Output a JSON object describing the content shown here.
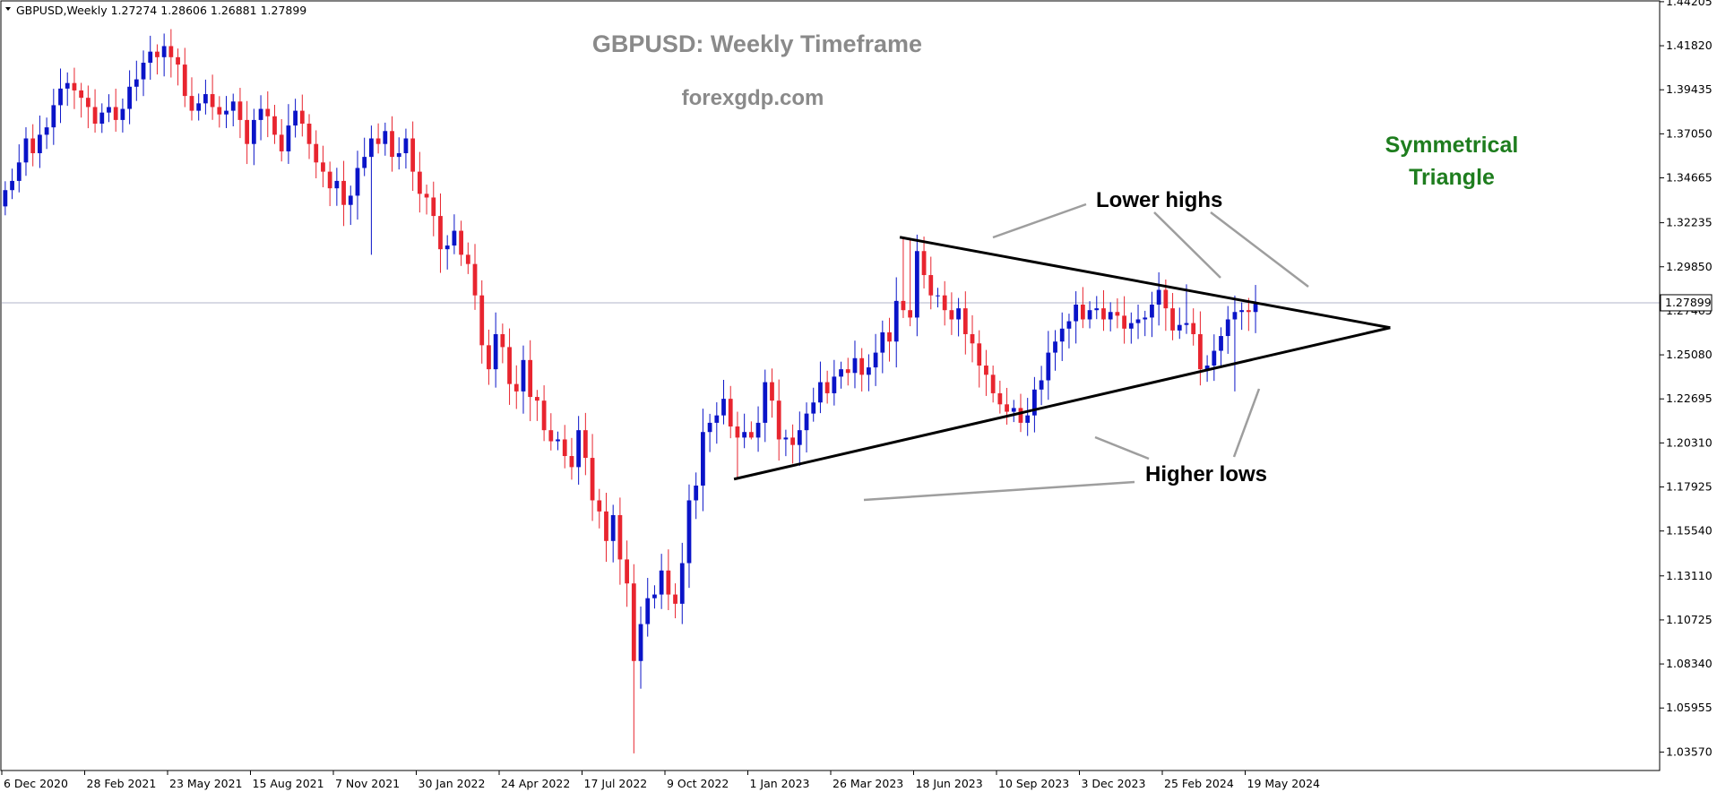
{
  "chart_data": {
    "type": "candlestick",
    "symbol_header": "GBPUSD,Weekly  1.27274 1.28606 1.26881 1.27899",
    "title": "GBPUSD: Weekly Timeframe",
    "subtitle": "forexgdp.com",
    "pattern_label": [
      "Symmetrical",
      "Triangle"
    ],
    "annotations": {
      "lower_highs": "Lower highs",
      "higher_lows": "Higher lows"
    },
    "current_price_label": "1.27899",
    "current_price": 1.27899,
    "ylim": [
      1.0257,
      1.442
    ],
    "x_range_weeks": [
      0,
      240
    ],
    "y_ticks": [
      "1.44205",
      "1.41820",
      "1.39435",
      "1.37050",
      "1.34665",
      "1.32235",
      "1.29850",
      "1.27465",
      "1.25080",
      "1.22695",
      "1.20310",
      "1.17925",
      "1.15540",
      "1.13110",
      "1.10725",
      "1.08340",
      "1.05955",
      "1.03570"
    ],
    "x_ticks": [
      {
        "label": "6 Dec 2020",
        "week": 0
      },
      {
        "label": "28 Feb 2021",
        "week": 12
      },
      {
        "label": "23 May 2021",
        "week": 24
      },
      {
        "label": "15 Aug 2021",
        "week": 36
      },
      {
        "label": "7 Nov 2021",
        "week": 48
      },
      {
        "label": "30 Jan 2022",
        "week": 60
      },
      {
        "label": "24 Apr 2022",
        "week": 72
      },
      {
        "label": "17 Jul 2022",
        "week": 84
      },
      {
        "label": "9 Oct 2022",
        "week": 96
      },
      {
        "label": "1 Jan 2023",
        "week": 108
      },
      {
        "label": "26 Mar 2023",
        "week": 120
      },
      {
        "label": "18 Jun 2023",
        "week": 132
      },
      {
        "label": "10 Sep 2023",
        "week": 144
      },
      {
        "label": "3 Dec 2023",
        "week": 156
      },
      {
        "label": "25 Feb 2024",
        "week": 168
      },
      {
        "label": "19 May 2024",
        "week": 180
      }
    ],
    "closes": [
      1.34,
      1.345,
      1.355,
      1.368,
      1.36,
      1.37,
      1.374,
      1.386,
      1.395,
      1.398,
      1.394,
      1.39,
      1.385,
      1.376,
      1.382,
      1.385,
      1.378,
      1.384,
      1.396,
      1.4,
      1.409,
      1.415,
      1.412,
      1.418,
      1.412,
      1.408,
      1.391,
      1.383,
      1.387,
      1.392,
      1.385,
      1.381,
      1.383,
      1.388,
      1.378,
      1.365,
      1.378,
      1.384,
      1.38,
      1.37,
      1.361,
      1.375,
      1.383,
      1.376,
      1.365,
      1.355,
      1.35,
      1.341,
      1.345,
      1.332,
      1.337,
      1.352,
      1.358,
      1.368,
      1.365,
      1.372,
      1.358,
      1.36,
      1.368,
      1.35,
      1.338,
      1.336,
      1.326,
      1.308,
      1.31,
      1.318,
      1.305,
      1.3,
      1.283,
      1.256,
      1.243,
      1.262,
      1.255,
      1.235,
      1.231,
      1.248,
      1.228,
      1.226,
      1.21,
      1.204,
      1.205,
      1.196,
      1.19,
      1.21,
      1.195,
      1.172,
      1.166,
      1.15,
      1.164,
      1.14,
      1.127,
      1.085,
      1.105,
      1.119,
      1.121,
      1.134,
      1.121,
      1.116,
      1.138,
      1.172,
      1.18,
      1.209,
      1.214,
      1.218,
      1.227,
      1.212,
      1.206,
      1.209,
      1.206,
      1.214,
      1.236,
      1.226,
      1.205,
      1.206,
      1.202,
      1.21,
      1.219,
      1.225,
      1.236,
      1.23,
      1.239,
      1.243,
      1.241,
      1.249,
      1.24,
      1.244,
      1.252,
      1.263,
      1.258,
      1.28,
      1.275,
      1.271,
      1.307,
      1.294,
      1.283,
      1.283,
      1.275,
      1.27,
      1.276,
      1.262,
      1.257,
      1.245,
      1.24,
      1.23,
      1.224,
      1.22,
      1.222,
      1.214,
      1.218,
      1.232,
      1.237,
      1.252,
      1.258,
      1.265,
      1.269,
      1.278,
      1.27,
      1.275,
      1.276,
      1.27,
      1.274,
      1.272,
      1.265,
      1.268,
      1.27,
      1.271,
      1.278,
      1.286,
      1.276,
      1.264,
      1.267,
      1.268,
      1.262,
      1.243,
      1.245,
      1.253,
      1.261,
      1.27,
      1.274,
      1.275,
      1.274,
      1.279
    ],
    "ohlc_overrides": {
      "53": {
        "l": 1.305,
        "h": 1.375
      },
      "91": {
        "l": 1.035
      },
      "92": {
        "l": 1.07
      },
      "106": {
        "l": 1.1835
      },
      "108": {
        "l": 1.205
      },
      "130": {
        "h": 1.314
      },
      "131": {
        "h": 1.313
      },
      "145": {
        "l": 1.213
      },
      "147": {
        "l": 1.209
      },
      "171": {
        "h": 1.289
      },
      "178": {
        "l": 1.231
      },
      "183": {
        "h": 1.286
      }
    },
    "trendlines": {
      "upper": [
        {
          "week": 130,
          "price": 1.3145
        },
        {
          "week": 201,
          "price": 1.2655
        }
      ],
      "lower": [
        {
          "week": 106,
          "price": 1.1835
        },
        {
          "week": 201,
          "price": 1.2655
        }
      ]
    },
    "colors": {
      "bull": "#0a14c8",
      "bear": "#e8252f",
      "trendline": "#000000",
      "pointer": "#9e9e9e",
      "price_line": "#b0b5c8"
    }
  }
}
